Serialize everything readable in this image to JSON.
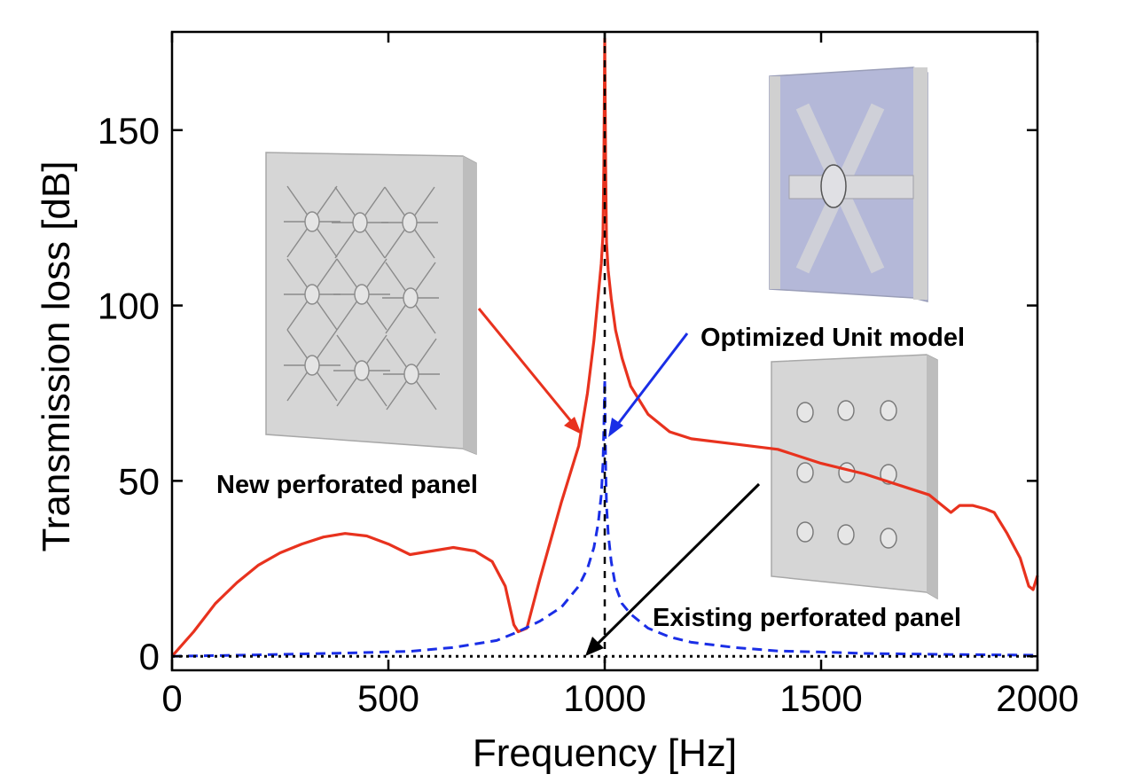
{
  "chart_data": {
    "type": "line",
    "title": "",
    "xlabel": "Frequency [Hz]",
    "ylabel": "Transmission loss [dB]",
    "xlim": [
      0,
      2000
    ],
    "ylim": [
      -4,
      178
    ],
    "xticks": [
      0,
      500,
      1000,
      1500,
      2000
    ],
    "yticks": [
      0,
      50,
      100,
      150
    ],
    "grid": false,
    "series": [
      {
        "name": "New perforated panel",
        "color": "#e8321e",
        "style": "solid",
        "x": [
          0,
          50,
          100,
          150,
          200,
          250,
          300,
          350,
          400,
          450,
          500,
          550,
          600,
          650,
          700,
          740,
          770,
          790,
          800,
          820,
          850,
          900,
          940,
          960,
          975,
          985,
          992,
          996,
          998,
          1000,
          1002,
          1004,
          1008,
          1015,
          1025,
          1040,
          1060,
          1100,
          1150,
          1200,
          1300,
          1400,
          1500,
          1600,
          1700,
          1750,
          1780,
          1800,
          1820,
          1850,
          1880,
          1900,
          1930,
          1960,
          1980,
          1990,
          2000
        ],
        "y": [
          0,
          7,
          15,
          21,
          26,
          29.5,
          32,
          34,
          35,
          34.3,
          32,
          29,
          30,
          31,
          30,
          27,
          20,
          9,
          7,
          8,
          22,
          44,
          60,
          75,
          90,
          103,
          112,
          120,
          140,
          176,
          140,
          118,
          110,
          102,
          93,
          85,
          77,
          69,
          64,
          62,
          60.5,
          59,
          55,
          52,
          48,
          46,
          43,
          41,
          43,
          43,
          42,
          41,
          35,
          28,
          20,
          19,
          23
        ]
      },
      {
        "name": "Optimized Unit model",
        "color": "#1a2ee6",
        "style": "dashed",
        "x": [
          0,
          200,
          400,
          550,
          650,
          750,
          800,
          850,
          900,
          940,
          960,
          975,
          985,
          992,
          996,
          998,
          1000,
          1002,
          1004,
          1008,
          1015,
          1025,
          1040,
          1060,
          1100,
          1150,
          1200,
          1300,
          1400,
          1500,
          1600,
          1800,
          2000
        ],
        "y": [
          0,
          0.4,
          0.9,
          1.4,
          2.5,
          4.5,
          7,
          10,
          14,
          20,
          25,
          31,
          38,
          46,
          55,
          65,
          79,
          55,
          43,
          35,
          27,
          20,
          15,
          12,
          8,
          5.5,
          4,
          2.5,
          1.5,
          1.2,
          0.8,
          0.5,
          0.3
        ]
      },
      {
        "name": "Existing perforated panel",
        "color": "#000000",
        "style": "dotted",
        "x": [
          0,
          2000
        ],
        "y": [
          0,
          0
        ]
      }
    ],
    "annotations": [
      {
        "text": "New perforated panel"
      },
      {
        "text": "Optimized Unit model"
      },
      {
        "text": "Existing perforated panel"
      }
    ]
  }
}
